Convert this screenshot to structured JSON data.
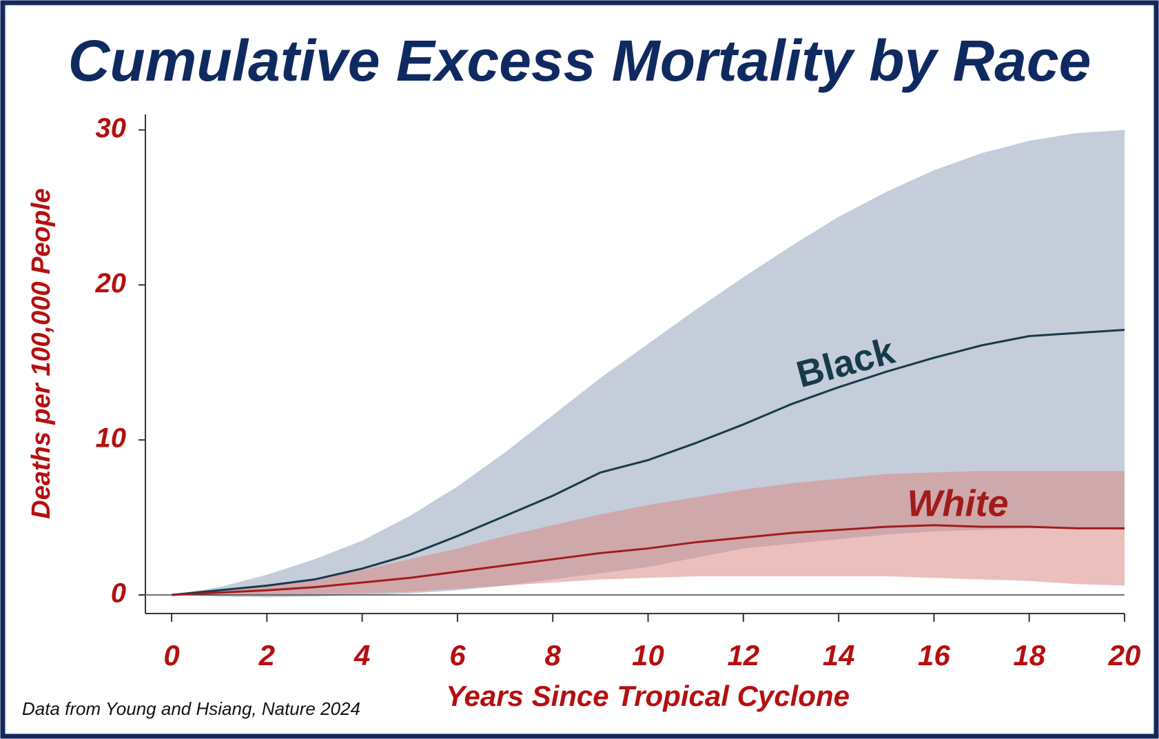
{
  "chart_data": {
    "type": "line",
    "title": "Cumulative Excess Mortality by Race",
    "x_label": "Years Since Tropical Cyclone",
    "y_label": "Deaths per 100,000 People",
    "source": "Data from Young and Hsiang, Nature 2024",
    "x": [
      0,
      1,
      2,
      3,
      4,
      5,
      6,
      7,
      8,
      9,
      10,
      11,
      12,
      13,
      14,
      15,
      16,
      17,
      18,
      19,
      20
    ],
    "xlim": [
      -0.55,
      20
    ],
    "ylim": [
      -1.2,
      31
    ],
    "xticks": [
      0,
      2,
      4,
      6,
      8,
      10,
      12,
      14,
      16,
      18,
      20
    ],
    "yticks": [
      0,
      10,
      20,
      30
    ],
    "zeroline": true,
    "series": [
      {
        "name": "Black",
        "color": "#173a4c",
        "band_color": "#c4cdd9",
        "values": [
          0,
          0.3,
          0.6,
          1.0,
          1.7,
          2.6,
          3.8,
          5.1,
          6.4,
          7.9,
          8.7,
          9.8,
          11.0,
          12.3,
          13.4,
          14.4,
          15.3,
          16.1,
          16.7,
          16.9,
          17.1
        ],
        "upper": [
          0,
          0.5,
          1.3,
          2.3,
          3.5,
          5.1,
          7.0,
          9.2,
          11.6,
          14.0,
          16.2,
          18.4,
          20.5,
          22.5,
          24.4,
          26.0,
          27.4,
          28.5,
          29.3,
          29.8,
          30.0
        ],
        "lower": [
          0,
          -0.1,
          -0.15,
          -0.1,
          0,
          0.1,
          0.3,
          0.6,
          1.0,
          1.4,
          1.8,
          2.4,
          3.0,
          3.3,
          3.6,
          3.9,
          4.1,
          4.2,
          4.3,
          4.3,
          4.2
        ]
      },
      {
        "name": "White",
        "color": "#a01c1c",
        "band_color": "#d98a86",
        "values": [
          0,
          0.15,
          0.3,
          0.5,
          0.8,
          1.1,
          1.5,
          1.9,
          2.3,
          2.7,
          3.0,
          3.4,
          3.7,
          4.0,
          4.2,
          4.4,
          4.5,
          4.4,
          4.4,
          4.3,
          4.3
        ],
        "upper": [
          0,
          0.3,
          0.6,
          1.0,
          1.6,
          2.3,
          3.0,
          3.8,
          4.5,
          5.2,
          5.8,
          6.3,
          6.8,
          7.2,
          7.5,
          7.8,
          7.9,
          8.0,
          8.0,
          8.0,
          8.0
        ],
        "lower": [
          0,
          0,
          0,
          0.05,
          0.1,
          0.2,
          0.4,
          0.6,
          0.8,
          1.0,
          1.1,
          1.2,
          1.2,
          1.2,
          1.2,
          1.2,
          1.1,
          1.0,
          0.9,
          0.7,
          0.6
        ]
      }
    ]
  }
}
